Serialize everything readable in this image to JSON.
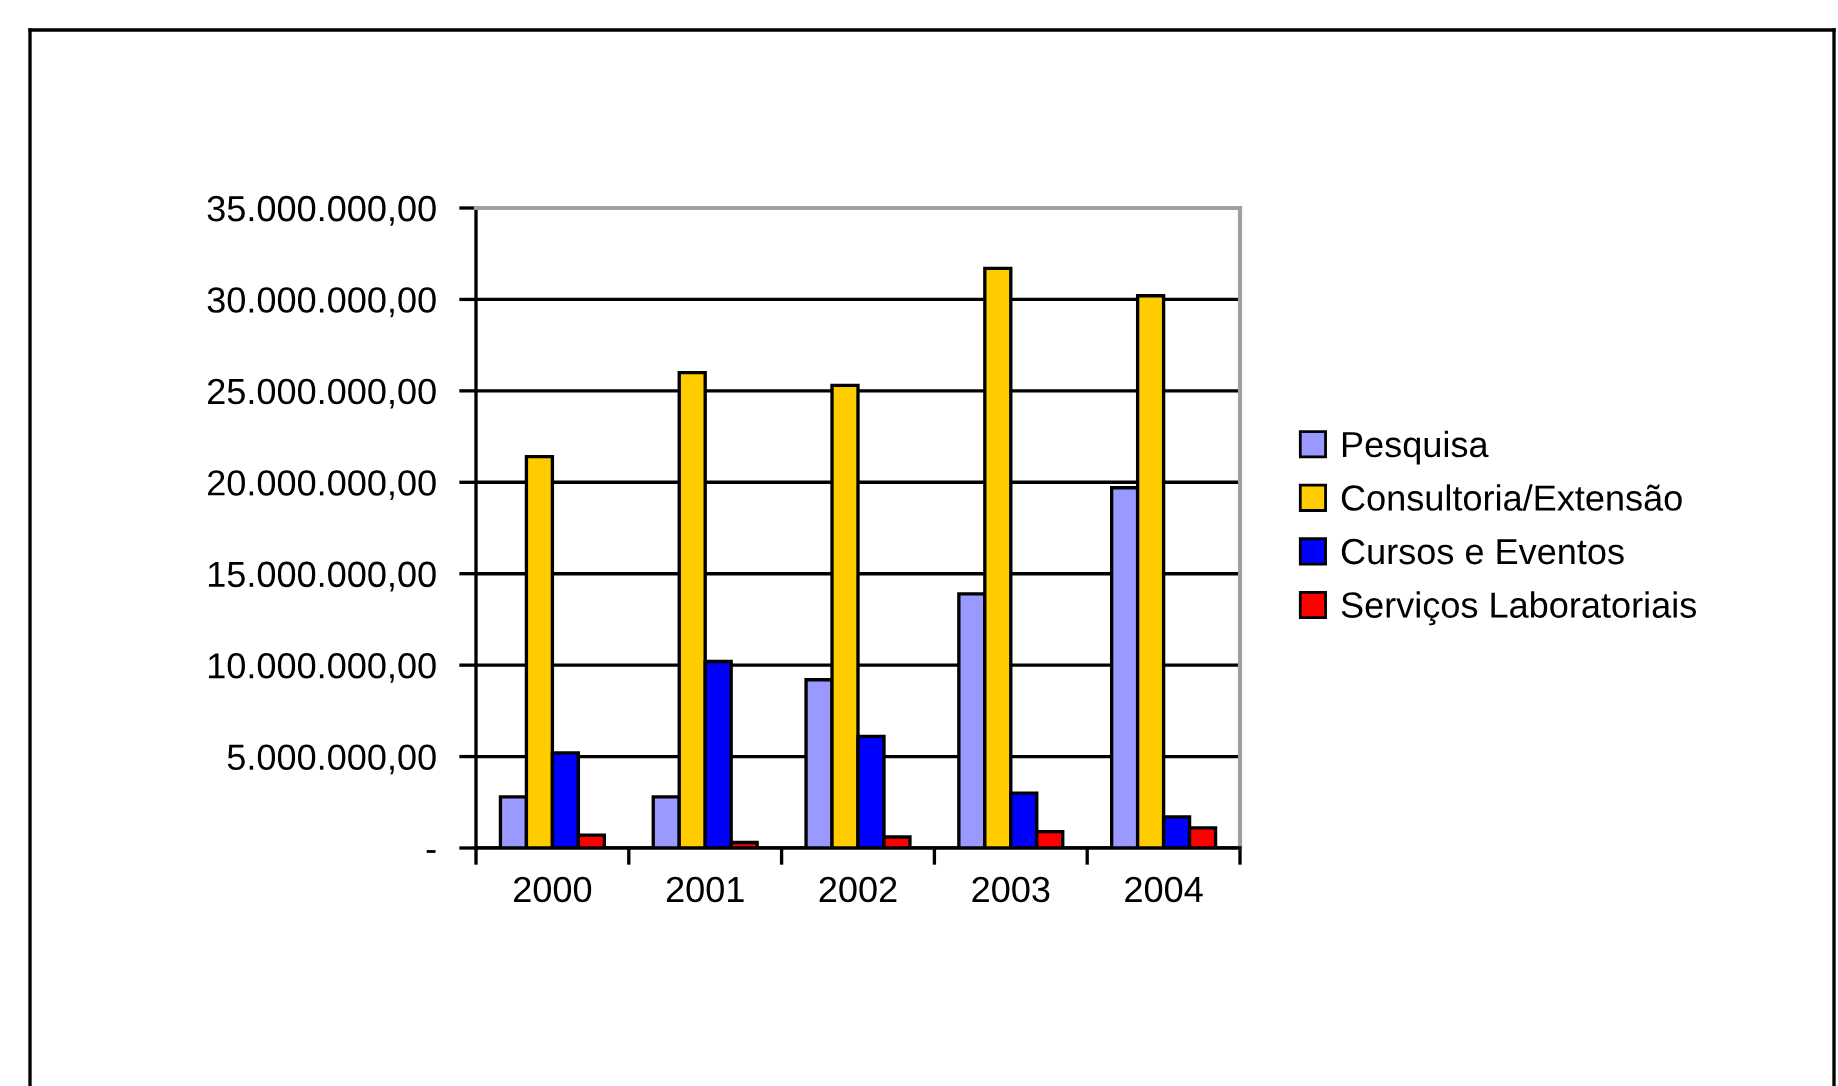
{
  "chart_data": {
    "type": "bar",
    "categories": [
      "2000",
      "2001",
      "2002",
      "2003",
      "2004"
    ],
    "series": [
      {
        "name": "Pesquisa",
        "color": "#9999ff",
        "values": [
          2800000,
          2800000,
          9200000,
          13900000,
          19700000
        ]
      },
      {
        "name": "Consultoria/Extensão",
        "color": "#ffcc00",
        "values": [
          21400000,
          26000000,
          25300000,
          31700000,
          30200000
        ]
      },
      {
        "name": "Cursos e Eventos",
        "color": "#0000ff",
        "values": [
          5200000,
          10200000,
          6100000,
          3000000,
          1700000
        ]
      },
      {
        "name": "Serviços Laboratoriais",
        "color": "#ff0000",
        "values": [
          700000,
          300000,
          600000,
          900000,
          1100000
        ]
      }
    ],
    "ylim": [
      0,
      35000000
    ],
    "yticks": [
      {
        "value": 0,
        "label": "-"
      },
      {
        "value": 5000000,
        "label": "5.000.000,00"
      },
      {
        "value": 10000000,
        "label": "10.000.000,00"
      },
      {
        "value": 15000000,
        "label": "15.000.000,00"
      },
      {
        "value": 20000000,
        "label": "20.000.000,00"
      },
      {
        "value": 25000000,
        "label": "25.000.000,00"
      },
      {
        "value": 30000000,
        "label": "30.000.000,00"
      },
      {
        "value": 35000000,
        "label": "35.000.000,00"
      }
    ],
    "grid": "y",
    "legend": "right"
  }
}
